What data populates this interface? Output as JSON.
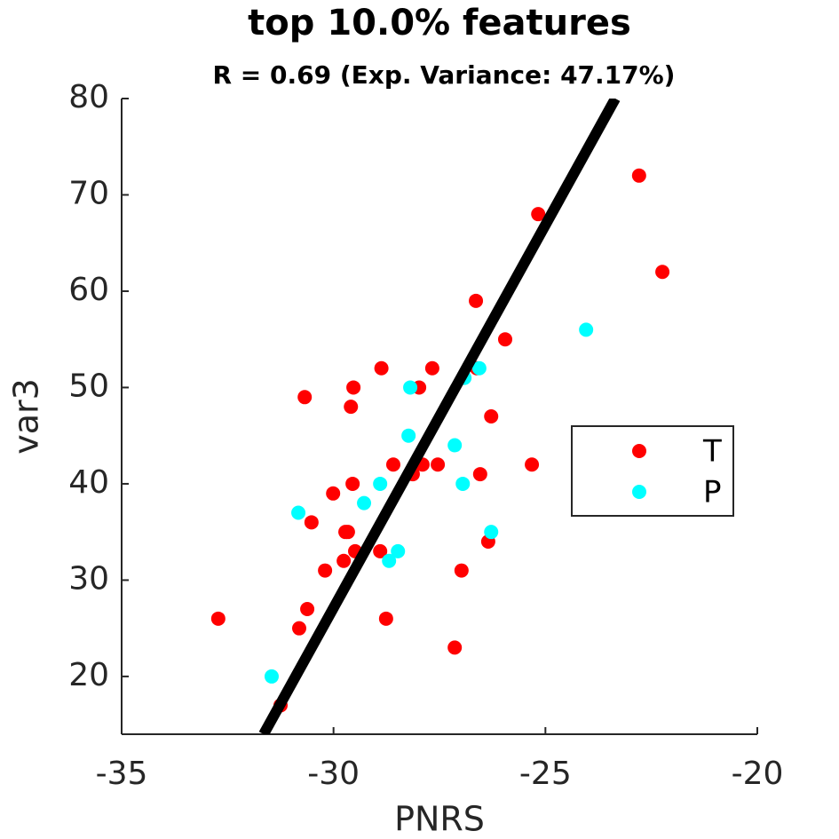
{
  "chart_data": {
    "type": "scatter",
    "title": "top 10.0% features",
    "subtitle": "R = 0.69 (Exp. Variance: 47.17%)",
    "xlabel": "PNRS",
    "ylabel": "var3",
    "xlim": [
      -35,
      -20
    ],
    "xticks": [
      -35,
      -30,
      -25,
      -20
    ],
    "ylim": [
      14,
      80
    ],
    "yticks": [
      20,
      30,
      40,
      50,
      60,
      70,
      80
    ],
    "legend_position": "right",
    "series": [
      {
        "name": "T",
        "color": "#ff0000",
        "x": [
          -32.72,
          -31.25,
          -30.81,
          -30.62,
          -30.52,
          -30.68,
          -30.2,
          -30.01,
          -29.76,
          -29.72,
          -29.66,
          -29.59,
          -29.53,
          -29.55,
          -29.49,
          -28.9,
          -28.87,
          -28.76,
          -28.59,
          -28.13,
          -27.98,
          -27.9,
          -27.67,
          -27.54,
          -27.14,
          -26.98,
          -26.62,
          -26.64,
          -26.54,
          -26.35,
          -26.28,
          -25.95,
          -25.32,
          -25.17,
          -22.79,
          -22.24
        ],
        "values": [
          26,
          17,
          25,
          27,
          36,
          49,
          31,
          39,
          32,
          35,
          35,
          48,
          50,
          40,
          33,
          33,
          52,
          26,
          42,
          41,
          50,
          42,
          52,
          42,
          23,
          31,
          52,
          59,
          41,
          34,
          47,
          55,
          42,
          68,
          72,
          62
        ]
      },
      {
        "name": "P",
        "color": "#00ffff",
        "x": [
          -31.46,
          -30.83,
          -29.28,
          -28.9,
          -28.69,
          -28.48,
          -28.23,
          -28.19,
          -27.14,
          -26.95,
          -26.91,
          -26.56,
          -26.28,
          -24.04
        ],
        "values": [
          20,
          37,
          38,
          40,
          32,
          33,
          45,
          50,
          44,
          40,
          51,
          52,
          35,
          56
        ]
      }
    ],
    "fit_line": {
      "color": "#000000",
      "x": [
        -31.65,
        -23.35
      ],
      "values": [
        14,
        80
      ]
    }
  }
}
